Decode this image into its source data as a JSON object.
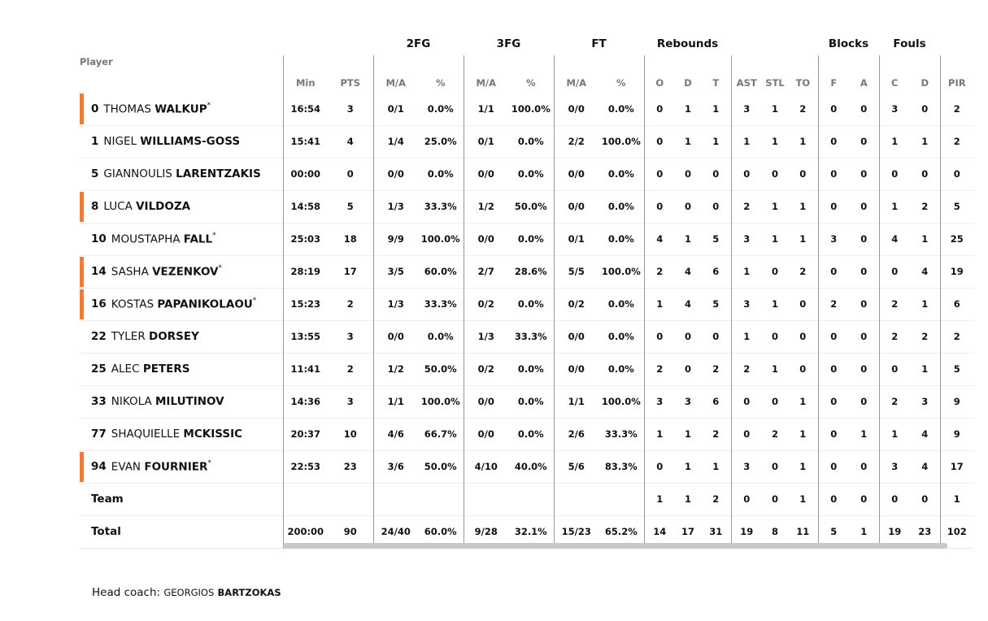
{
  "header": {
    "groups": {
      "fg2": "2FG",
      "fg3": "3FG",
      "ft": "FT",
      "reb": "Rebounds",
      "blk": "Blocks",
      "fouls": "Fouls"
    },
    "player_label": "Player",
    "columns": [
      "Min",
      "PTS",
      "M/A",
      "%",
      "M/A",
      "%",
      "M/A",
      "%",
      "O",
      "D",
      "T",
      "AST",
      "STL",
      "TO",
      "F",
      "A",
      "C",
      "D",
      "PIR"
    ]
  },
  "accent_color": "#f47a30",
  "players": [
    {
      "num": "0",
      "first": "THOMAS",
      "last": "WALKUP",
      "starter": true,
      "highlight": true,
      "stats": [
        "16:54",
        "3",
        "0/1",
        "0.0%",
        "1/1",
        "100.0%",
        "0/0",
        "0.0%",
        "0",
        "1",
        "1",
        "3",
        "1",
        "2",
        "0",
        "0",
        "3",
        "0",
        "2"
      ]
    },
    {
      "num": "1",
      "first": "NIGEL",
      "last": "WILLIAMS-GOSS",
      "starter": false,
      "highlight": false,
      "stats": [
        "15:41",
        "4",
        "1/4",
        "25.0%",
        "0/1",
        "0.0%",
        "2/2",
        "100.0%",
        "0",
        "1",
        "1",
        "1",
        "1",
        "1",
        "0",
        "0",
        "1",
        "1",
        "2"
      ]
    },
    {
      "num": "5",
      "first": "GIANNOULIS",
      "last": "LARENTZAKIS",
      "starter": false,
      "highlight": false,
      "stats": [
        "00:00",
        "0",
        "0/0",
        "0.0%",
        "0/0",
        "0.0%",
        "0/0",
        "0.0%",
        "0",
        "0",
        "0",
        "0",
        "0",
        "0",
        "0",
        "0",
        "0",
        "0",
        "0"
      ]
    },
    {
      "num": "8",
      "first": "LUCA",
      "last": "VILDOZA",
      "starter": false,
      "highlight": true,
      "stats": [
        "14:58",
        "5",
        "1/3",
        "33.3%",
        "1/2",
        "50.0%",
        "0/0",
        "0.0%",
        "0",
        "0",
        "0",
        "2",
        "1",
        "1",
        "0",
        "0",
        "1",
        "2",
        "5"
      ]
    },
    {
      "num": "10",
      "first": "MOUSTAPHA",
      "last": "FALL",
      "starter": true,
      "highlight": false,
      "stats": [
        "25:03",
        "18",
        "9/9",
        "100.0%",
        "0/0",
        "0.0%",
        "0/1",
        "0.0%",
        "4",
        "1",
        "5",
        "3",
        "1",
        "1",
        "3",
        "0",
        "4",
        "1",
        "25"
      ]
    },
    {
      "num": "14",
      "first": "SASHA",
      "last": "VEZENKOV",
      "starter": true,
      "highlight": true,
      "stats": [
        "28:19",
        "17",
        "3/5",
        "60.0%",
        "2/7",
        "28.6%",
        "5/5",
        "100.0%",
        "2",
        "4",
        "6",
        "1",
        "0",
        "2",
        "0",
        "0",
        "0",
        "4",
        "19"
      ]
    },
    {
      "num": "16",
      "first": "KOSTAS",
      "last": "PAPANIKOLAOU",
      "starter": true,
      "highlight": true,
      "stats": [
        "15:23",
        "2",
        "1/3",
        "33.3%",
        "0/2",
        "0.0%",
        "0/2",
        "0.0%",
        "1",
        "4",
        "5",
        "3",
        "1",
        "0",
        "2",
        "0",
        "2",
        "1",
        "6"
      ]
    },
    {
      "num": "22",
      "first": "TYLER",
      "last": "DORSEY",
      "starter": false,
      "highlight": false,
      "stats": [
        "13:55",
        "3",
        "0/0",
        "0.0%",
        "1/3",
        "33.3%",
        "0/0",
        "0.0%",
        "0",
        "0",
        "0",
        "1",
        "0",
        "0",
        "0",
        "0",
        "2",
        "2",
        "2"
      ]
    },
    {
      "num": "25",
      "first": "ALEC",
      "last": "PETERS",
      "starter": false,
      "highlight": false,
      "stats": [
        "11:41",
        "2",
        "1/2",
        "50.0%",
        "0/2",
        "0.0%",
        "0/0",
        "0.0%",
        "2",
        "0",
        "2",
        "2",
        "1",
        "0",
        "0",
        "0",
        "0",
        "1",
        "5"
      ]
    },
    {
      "num": "33",
      "first": "NIKOLA",
      "last": "MILUTINOV",
      "starter": false,
      "highlight": false,
      "stats": [
        "14:36",
        "3",
        "1/1",
        "100.0%",
        "0/0",
        "0.0%",
        "1/1",
        "100.0%",
        "3",
        "3",
        "6",
        "0",
        "0",
        "1",
        "0",
        "0",
        "2",
        "3",
        "9"
      ]
    },
    {
      "num": "77",
      "first": "SHAQUIELLE",
      "last": "MCKISSIC",
      "starter": false,
      "highlight": false,
      "stats": [
        "20:37",
        "10",
        "4/6",
        "66.7%",
        "0/0",
        "0.0%",
        "2/6",
        "33.3%",
        "1",
        "1",
        "2",
        "0",
        "2",
        "1",
        "0",
        "1",
        "1",
        "4",
        "9"
      ]
    },
    {
      "num": "94",
      "first": "EVAN",
      "last": "FOURNIER",
      "starter": true,
      "highlight": true,
      "stats": [
        "22:53",
        "23",
        "3/6",
        "50.0%",
        "4/10",
        "40.0%",
        "5/6",
        "83.3%",
        "0",
        "1",
        "1",
        "3",
        "0",
        "1",
        "0",
        "0",
        "3",
        "4",
        "17"
      ]
    }
  ],
  "team": {
    "label": "Team",
    "stats": [
      "",
      "",
      "",
      "",
      "",
      "",
      "",
      "",
      "1",
      "1",
      "2",
      "0",
      "0",
      "1",
      "0",
      "0",
      "0",
      "0",
      "1"
    ]
  },
  "total": {
    "label": "Total",
    "stats": [
      "200:00",
      "90",
      "24/40",
      "60.0%",
      "9/28",
      "32.1%",
      "15/23",
      "65.2%",
      "14",
      "17",
      "31",
      "19",
      "8",
      "11",
      "5",
      "1",
      "19",
      "23",
      "102"
    ]
  },
  "coach": {
    "label": "Head coach:",
    "first": "GEORGIOS",
    "last": "BARTZOKAS"
  }
}
